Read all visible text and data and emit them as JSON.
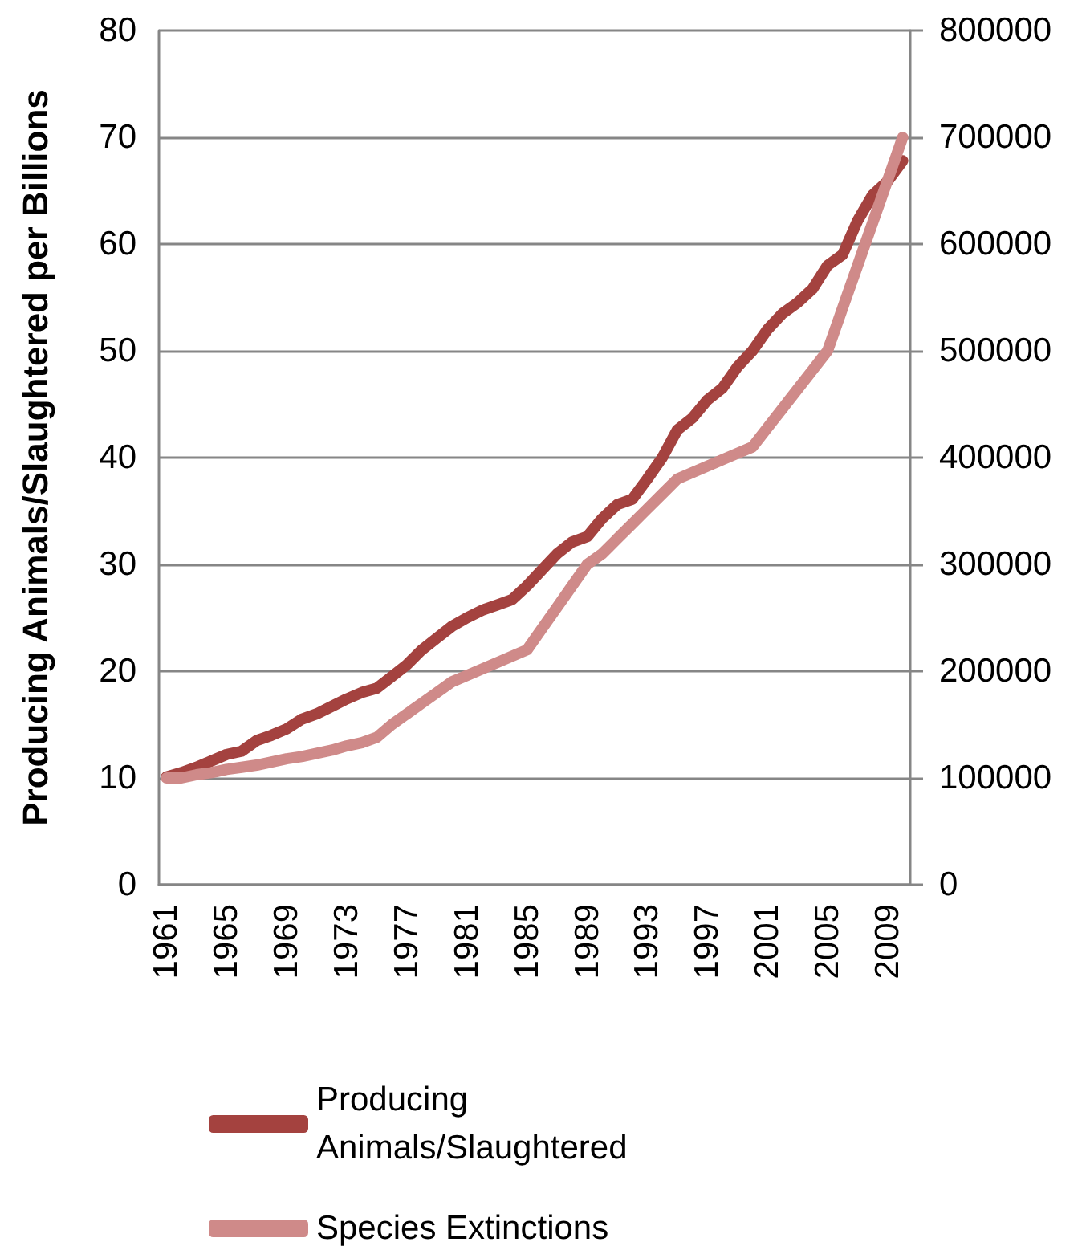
{
  "chart_data": {
    "type": "line",
    "ylabel": "Producing Animals/Slaughtered per Billions",
    "categories": [
      "1961",
      null,
      null,
      null,
      "1965",
      null,
      null,
      null,
      "1969",
      null,
      null,
      null,
      "1973",
      null,
      null,
      null,
      "1977",
      null,
      null,
      null,
      "1981",
      null,
      null,
      null,
      "1985",
      null,
      null,
      null,
      "1989",
      null,
      null,
      null,
      "1993",
      null,
      null,
      null,
      "1997",
      null,
      null,
      null,
      "2001",
      null,
      null,
      null,
      "2005",
      null,
      null,
      null,
      "2009",
      null
    ],
    "series": [
      {
        "name": "Producing Animals/Slaughtered",
        "color": "#a4423f",
        "axis": "y",
        "values": [
          10.1,
          10.5,
          11.0,
          11.6,
          12.2,
          12.5,
          13.5,
          14.0,
          14.6,
          15.5,
          16.0,
          16.7,
          17.4,
          18.0,
          18.4,
          19.5,
          20.6,
          22.0,
          23.1,
          24.2,
          25.0,
          25.7,
          26.2,
          26.7,
          28.0,
          29.5,
          31.0,
          32.1,
          32.6,
          34.3,
          35.6,
          36.1,
          38.0,
          40.0,
          42.6,
          43.7,
          45.4,
          46.5,
          48.5,
          50.0,
          52.0,
          53.5,
          54.5,
          55.8,
          58.0,
          59.0,
          62.2,
          64.6,
          65.9,
          67.8
        ]
      },
      {
        "name": "Species Extinctions",
        "color": "#cf8a89",
        "axis": "y2",
        "values": [
          100000,
          100000,
          103000,
          105000,
          108000,
          110000,
          112000,
          115000,
          118000,
          120000,
          123000,
          126000,
          130000,
          133000,
          138000,
          150000,
          160000,
          170000,
          180000,
          190000,
          196000,
          202000,
          208000,
          214000,
          220000,
          240000,
          260000,
          280000,
          300000,
          310000,
          324000,
          338000,
          352000,
          366000,
          380000,
          386000,
          392000,
          398000,
          404000,
          410000,
          428000,
          446000,
          464000,
          482000,
          500000,
          540000,
          580000,
          620000,
          660000,
          700000
        ]
      }
    ],
    "ylim": [
      0,
      80
    ],
    "yticks": [
      0,
      10,
      20,
      30,
      40,
      50,
      60,
      70,
      80
    ],
    "y2lim": [
      0,
      800000
    ],
    "y2ticks": [
      0,
      100000,
      200000,
      300000,
      400000,
      500000,
      600000,
      700000,
      800000
    ],
    "grid": "y",
    "legend": "bottom",
    "marker": "none",
    "line_style": "solid"
  }
}
